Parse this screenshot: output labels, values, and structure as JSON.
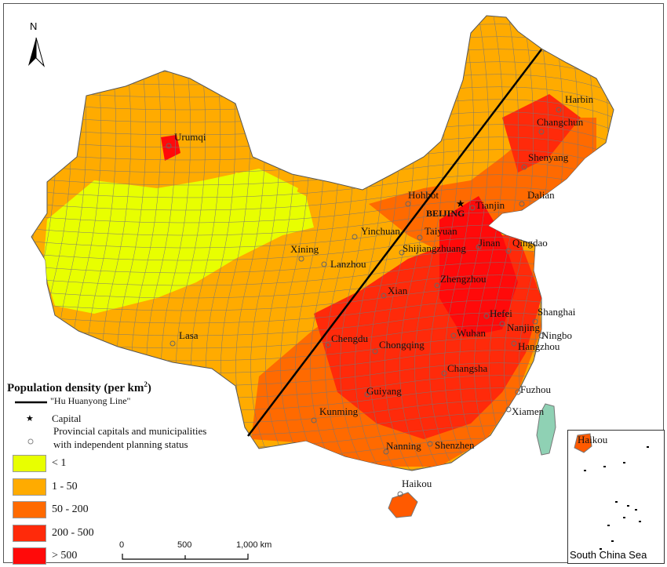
{
  "north_label": "N",
  "legend": {
    "title": "Population density (per km",
    "title_sup": "2",
    "title_end": ")",
    "hu_line": "\"Hu Huanyong Line\"",
    "capital": "Capital",
    "provincial_line1": "Provincial capitals and municipalities",
    "provincial_line2": "with independent planning status",
    "classes": [
      {
        "label": "< 1",
        "color": "#e8ff00"
      },
      {
        "label": "1 - 50",
        "color": "#ffab00"
      },
      {
        "label": "50 - 200",
        "color": "#ff6a00"
      },
      {
        "label": "200 - 500",
        "color": "#ff2a0a"
      },
      {
        "label": "> 500",
        "color": "#ff0a0a"
      }
    ]
  },
  "scale": {
    "labels": [
      "0",
      "500",
      "1,000 km"
    ]
  },
  "inset": {
    "label": "South China Sea",
    "city": "Haikou"
  },
  "capital_city": "BEIJING",
  "cities": [
    "Harbin",
    "Changchun",
    "Shenyang",
    "Urumqi",
    "Hohhot",
    "Tianjin",
    "Dalian",
    "Yinchuan",
    "Taiyuan",
    "Xining",
    "Shijiangzhuang",
    "Jinan",
    "Qingdao",
    "Lanzhou",
    "Zhengzhou",
    "Xian",
    "Hefei",
    "Shanghai",
    "Nanjing",
    "Ningbo",
    "Wuhan",
    "Hangzhou",
    "Lasa",
    "Chengdu",
    "Chongqing",
    "Changsha",
    "Guiyang",
    "Fuzhou",
    "Xiamen",
    "Kunming",
    "Nanning",
    "Shenzhen",
    "Haikou"
  ],
  "colors": {
    "taiwan": "#8fd1b4",
    "boundary": "#777777",
    "hu_line": "#000000"
  }
}
